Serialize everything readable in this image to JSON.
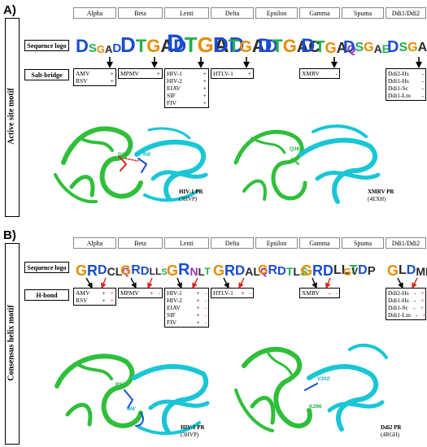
{
  "colors": {
    "green": "#2fbf3a",
    "cyan": "#19c6d6",
    "red": "#e0201c",
    "blue": "#1a4cd4",
    "orange": "#e88b00"
  },
  "panelA": {
    "letter": "A)",
    "side_label": "Active site motif",
    "groups": [
      "Alpha",
      "Beta",
      "Lenti",
      "Delta",
      "Epsilon",
      "Gamma",
      "Spuma",
      "Ddi1/Ddi2"
    ],
    "row1_label": "Sequence logo",
    "row2_label": "Salt-bridge",
    "logos": [
      "DSGAD",
      "DTGAD",
      "DTGAD",
      "DTGAD",
      "DTGAC",
      "DTGAQ",
      "DSGAE",
      "DSGAQ"
    ],
    "tables": [
      [
        [
          "AMV",
          "+"
        ],
        [
          "RSV",
          "+"
        ]
      ],
      [
        [
          "MPMV",
          "+"
        ]
      ],
      [
        [
          "HIV-1",
          "+"
        ],
        [
          "HIV-2",
          "+"
        ],
        [
          "EIAV",
          "+"
        ],
        [
          "SIF",
          "+"
        ],
        [
          "FIV",
          "+"
        ]
      ],
      [
        [
          "HTLV-1",
          "+"
        ]
      ],
      [
        [
          "XMRV",
          "-"
        ]
      ],
      [
        [
          "Ddi2-Hs",
          "-"
        ],
        [
          "Ddi1-Hs",
          "-"
        ],
        [
          "Ddi1-Sc",
          "-"
        ],
        [
          "Ddi1-Lm",
          "-"
        ]
      ]
    ],
    "struct1": {
      "name": "HIV-1 PR",
      "pdb": "(3HVP)",
      "res1": "D29",
      "res2": "R8'"
    },
    "struct2": {
      "name": "XMRV PR",
      "pdb": "(4EXH)",
      "res1": "Q36"
    }
  },
  "panelB": {
    "letter": "B)",
    "side_label": "Consensus helix motif",
    "groups": [
      "Alpha",
      "Beta",
      "Lenti",
      "Delta",
      "Epsilon",
      "Gamma",
      "Spuma",
      "Ddi1/Ddi2"
    ],
    "row1_label": "Sequence logo",
    "row2_label": "H-bond",
    "logos": [
      "GRDCLQ",
      "GRDLLS",
      "GRNLT",
      "GRDALQ",
      "GRDTLS",
      "GRDLLT",
      "GVDP",
      "GLDMLK"
    ],
    "tables": [
      [
        [
          "AMV",
          "+",
          "+"
        ],
        [
          "RSV",
          "+",
          "+"
        ]
      ],
      [
        [
          "MPMV",
          "+",
          "-"
        ]
      ],
      [
        [
          "HIV-1",
          "+",
          "-"
        ],
        [
          "HIV-2",
          "+",
          "-"
        ],
        [
          "EIAV",
          "+",
          "-"
        ],
        [
          "SIF",
          "+",
          "-"
        ],
        [
          "FIV",
          "+",
          "-"
        ]
      ],
      [
        [
          "HTLV-1",
          "+",
          "-"
        ]
      ],
      [
        [
          "XMRV",
          "-",
          "-"
        ]
      ],
      [
        [
          "Ddi2-Hs",
          "-",
          "+"
        ],
        [
          "Ddi1-Hs",
          "-",
          "+"
        ],
        [
          "Ddi1-Sc",
          "-",
          "+"
        ],
        [
          "Ddi1-Lm",
          "-",
          "+"
        ]
      ]
    ],
    "struct1": {
      "name": "HIV-1 PR",
      "pdb": "(3HVP)",
      "res1": "R87",
      "res2": "W6'"
    },
    "struct2": {
      "name": "Ddi2 PR",
      "pdb": "(4RGH)",
      "res1": "V202'",
      "res2": "K296"
    }
  }
}
